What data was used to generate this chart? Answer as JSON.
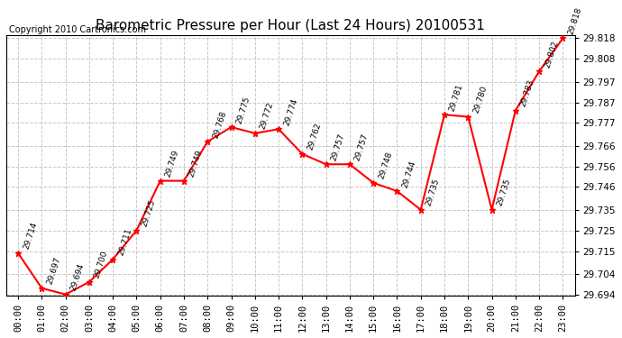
{
  "title": "Barometric Pressure per Hour (Last 24 Hours) 20100531",
  "copyright": "Copyright 2010 Cartronics.com",
  "hours": [
    "00:00",
    "01:00",
    "02:00",
    "03:00",
    "04:00",
    "05:00",
    "06:00",
    "07:00",
    "08:00",
    "09:00",
    "10:00",
    "11:00",
    "12:00",
    "13:00",
    "14:00",
    "15:00",
    "16:00",
    "17:00",
    "18:00",
    "19:00",
    "20:00",
    "21:00",
    "22:00",
    "23:00"
  ],
  "values": [
    29.714,
    29.697,
    29.694,
    29.7,
    29.711,
    29.725,
    29.749,
    29.749,
    29.768,
    29.775,
    29.772,
    29.774,
    29.762,
    29.757,
    29.757,
    29.748,
    29.744,
    29.735,
    29.781,
    29.78,
    29.735,
    29.783,
    29.802,
    29.818
  ],
  "labels": [
    "29.714",
    "29.697",
    "29.694",
    "29.700",
    "29.711",
    "29.725",
    "29.749",
    "29.749",
    "29.768",
    "29.775",
    "29.772",
    "29.774",
    "29.762",
    "29.757",
    "29.757",
    "29.748",
    "29.744",
    "29.735",
    "29.781",
    "29.780",
    "29.735",
    "29.783",
    "29.802",
    "29.818"
  ],
  "ylim_min": 29.6935,
  "ylim_max": 29.8195,
  "yticks": [
    29.694,
    29.704,
    29.715,
    29.725,
    29.735,
    29.746,
    29.756,
    29.766,
    29.777,
    29.787,
    29.797,
    29.808,
    29.818
  ],
  "line_color": "#ff0000",
  "marker_color": "#ff0000",
  "bg_color": "#ffffff",
  "grid_color": "#c8c8c8",
  "title_fontsize": 11,
  "copyright_fontsize": 7,
  "label_fontsize": 6.5,
  "tick_fontsize": 7.5
}
